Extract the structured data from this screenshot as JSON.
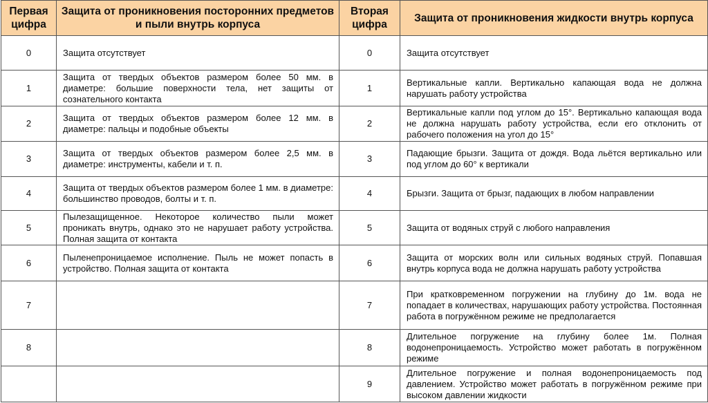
{
  "table": {
    "header": [
      "Первая цифра",
      "Защита от проникновения посторонних предметов и пыли внутрь корпуса",
      "Вторая цифра",
      "Защита от проникновения жидкости внутрь корпуса"
    ],
    "rows": [
      [
        "0",
        "Защита отсутствует",
        "0",
        "Защита отсутствует"
      ],
      [
        "1",
        "Защита от твердых объектов размером более 50 мм. в диаметре: большие поверхности тела, нет защиты от сознательного контакта",
        "1",
        "Вертикальные капли. Вертикально капающая вода не должна нарушать работу устройства"
      ],
      [
        "2",
        "Защита от твердых объектов размером более 12 мм. в диаметре: пальцы и подобные объекты",
        "2",
        "Вертикальные капли под углом до 15°. Вертикально капающая вода не должна нарушать работу устройства, если его отклонить от рабочего положения на угол до 15°"
      ],
      [
        "3",
        "Защита от твердых объектов размером более 2,5 мм. в диаметре: инструменты, кабели и т. п.",
        "3",
        "Падающие брызги. Защита от дождя. Вода льётся вертикально или под углом до 60° к вертикали"
      ],
      [
        "4",
        "Защита от твердых объектов размером более 1 мм. в диаметре: большинство проводов, болты и т. п.",
        "4",
        "Брызги. Защита от брызг, падающих в любом направлении"
      ],
      [
        "5",
        "Пылезащищенное. Некоторое количество пыли может проникать внутрь, однако это не нарушает работу устройства. Полная защита от контакта",
        "5",
        "Защита от водяных струй с любого направления"
      ],
      [
        "6",
        "Пыленепроницаемое исполнение. Пыль не может попасть в устройство. Полная защита от контакта",
        "6",
        "Защита от морских волн или сильных водяных струй. Попавшая внутрь корпуса вода не должна нарушать работу устройства"
      ],
      [
        "7",
        null,
        "7",
        "При кратковременном погружении на глубину до 1м. вода не попадает в количествах, нарушающих работу устройства. Постоянная работа в погружённом режиме не предполагается"
      ],
      [
        "8",
        null,
        "8",
        "Длительное погружение на глубину более 1м. Полная водонепроницаемость. Устройство может работать в погружённом режиме"
      ],
      [
        null,
        null,
        "9",
        "Длительное погружение и полная водонепроницаемость под давлением. Устройство может работать в погружённом режиме при высоком давлении жидкости"
      ]
    ]
  }
}
